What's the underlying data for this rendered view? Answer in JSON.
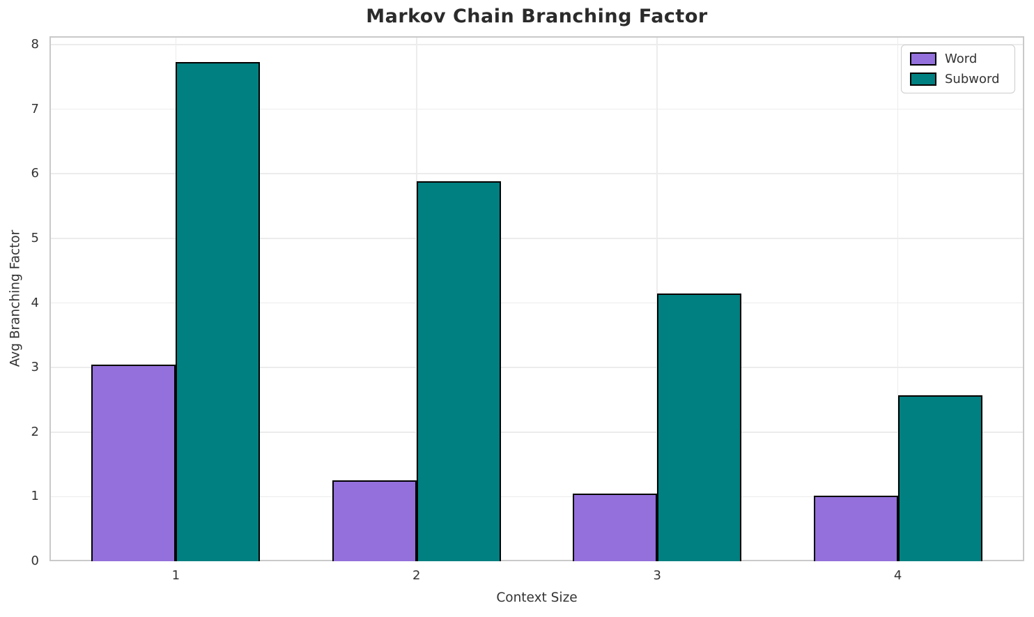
{
  "chart_data": {
    "type": "bar",
    "title": "Markov Chain Branching Factor",
    "xlabel": "Context Size",
    "ylabel": "Avg Branching Factor",
    "categories": [
      "1",
      "2",
      "3",
      "4"
    ],
    "series": [
      {
        "name": "Word",
        "color": "#9370DB",
        "values": [
          3.05,
          1.25,
          1.05,
          1.02
        ]
      },
      {
        "name": "Subword",
        "color": "#008080",
        "values": [
          7.73,
          5.88,
          4.15,
          2.57
        ]
      }
    ],
    "yticks": [
      0,
      1,
      2,
      3,
      4,
      5,
      6,
      7,
      8
    ],
    "ylim": [
      0,
      8.13
    ],
    "grid": true,
    "legend_position": "upper-right",
    "styles": {
      "bar_edge_color": "#000000",
      "grid_color": "#ececec",
      "spine_color": "#c9c9c9",
      "text_color": "#333333",
      "title_color": "#2b2b2b",
      "background": "#ffffff"
    }
  }
}
